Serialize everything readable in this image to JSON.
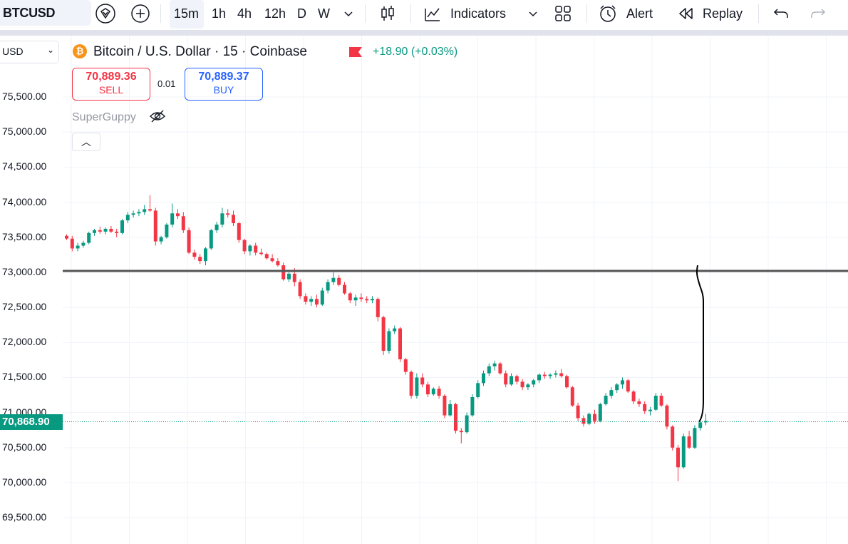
{
  "toolbar": {
    "symbol": "BTCUSD",
    "timeframes": [
      "15m",
      "1h",
      "4h",
      "12h",
      "D",
      "W"
    ],
    "active_timeframe": "15m",
    "indicators_label": "Indicators",
    "alert_label": "Alert",
    "replay_label": "Replay"
  },
  "axis": {
    "currency": "USD",
    "ticks": [
      "75,500.00",
      "75,000.00",
      "74,500.00",
      "74,000.00",
      "73,500.00",
      "73,000.00",
      "72,500.00",
      "72,000.00",
      "71,500.00",
      "71,000.00",
      "70,500.00",
      "70,000.00",
      "69,500.00"
    ],
    "current_price": "70,868.90"
  },
  "legend": {
    "title": "Bitcoin / U.S. Dollar · 15 · Coinbase",
    "change": "+18.90 (+0.03%)",
    "sell_price": "70,889.36",
    "sell_label": "SELL",
    "spread": "0.01",
    "buy_price": "70,889.37",
    "buy_label": "BUY",
    "indicator": "SuperGuppy"
  },
  "colors": {
    "up": "#089981",
    "down": "#f23645",
    "horizontal_line": "#555555",
    "grid": "#f0f3fa"
  },
  "chart_data": {
    "type": "candlestick",
    "title": "",
    "xlabel": "",
    "ylabel": "",
    "ylim": [
      69250,
      75750
    ],
    "horizontal_line": 73020,
    "current_price": 70868.9,
    "drawing": "freehand vertical line from 73100 down to current price",
    "candles": [
      [
        73520,
        73540,
        73460,
        73480
      ],
      [
        73480,
        73520,
        73300,
        73340
      ],
      [
        73340,
        73420,
        73300,
        73380
      ],
      [
        73380,
        73450,
        73350,
        73420
      ],
      [
        73420,
        73580,
        73400,
        73560
      ],
      [
        73560,
        73620,
        73520,
        73600
      ],
      [
        73600,
        73650,
        73550,
        73580
      ],
      [
        73580,
        73640,
        73540,
        73620
      ],
      [
        73620,
        73660,
        73560,
        73580
      ],
      [
        73580,
        73620,
        73500,
        73560
      ],
      [
        73560,
        73760,
        73540,
        73740
      ],
      [
        73740,
        73860,
        73700,
        73820
      ],
      [
        73820,
        73880,
        73780,
        73840
      ],
      [
        73840,
        73900,
        73800,
        73860
      ],
      [
        73860,
        73960,
        73820,
        73900
      ],
      [
        73900,
        74100,
        73860,
        73880
      ],
      [
        73880,
        73920,
        73380,
        73440
      ],
      [
        73440,
        73520,
        73400,
        73500
      ],
      [
        73500,
        73700,
        73480,
        73680
      ],
      [
        73680,
        73980,
        73640,
        73840
      ],
      [
        73840,
        73900,
        73760,
        73800
      ],
      [
        73800,
        73860,
        73560,
        73600
      ],
      [
        73600,
        73640,
        73260,
        73280
      ],
      [
        73280,
        73320,
        73180,
        73220
      ],
      [
        73220,
        73260,
        73120,
        73160
      ],
      [
        73160,
        73360,
        73100,
        73340
      ],
      [
        73340,
        73620,
        73320,
        73600
      ],
      [
        73600,
        73720,
        73560,
        73680
      ],
      [
        73680,
        73920,
        73640,
        73840
      ],
      [
        73840,
        73900,
        73780,
        73820
      ],
      [
        73820,
        73880,
        73660,
        73700
      ],
      [
        73700,
        73720,
        73420,
        73460
      ],
      [
        73460,
        73480,
        73260,
        73300
      ],
      [
        73300,
        73400,
        73240,
        73380
      ],
      [
        73380,
        73420,
        73240,
        73280
      ],
      [
        73280,
        73340,
        73240,
        73260
      ],
      [
        73260,
        73280,
        73180,
        73200
      ],
      [
        73200,
        73260,
        73140,
        73160
      ],
      [
        73160,
        73200,
        73080,
        73100
      ],
      [
        73100,
        73140,
        72880,
        72900
      ],
      [
        72900,
        73000,
        72860,
        72980
      ],
      [
        72980,
        73060,
        72800,
        72860
      ],
      [
        72860,
        72900,
        72620,
        72660
      ],
      [
        72660,
        72700,
        72540,
        72580
      ],
      [
        72580,
        72660,
        72520,
        72620
      ],
      [
        72620,
        72680,
        72500,
        72540
      ],
      [
        72540,
        72780,
        72520,
        72740
      ],
      [
        72740,
        72900,
        72700,
        72860
      ],
      [
        72860,
        73000,
        72820,
        72920
      ],
      [
        72920,
        72960,
        72800,
        72820
      ],
      [
        72820,
        72860,
        72680,
        72700
      ],
      [
        72700,
        72720,
        72560,
        72600
      ],
      [
        72600,
        72680,
        72520,
        72640
      ],
      [
        72640,
        72700,
        72580,
        72620
      ],
      [
        72620,
        72660,
        72560,
        72600
      ],
      [
        72600,
        72660,
        72560,
        72620
      ],
      [
        72620,
        72640,
        72300,
        72360
      ],
      [
        72360,
        72380,
        71820,
        71880
      ],
      [
        71880,
        72200,
        71840,
        72160
      ],
      [
        72160,
        72240,
        72120,
        72200
      ],
      [
        72200,
        72220,
        71720,
        71760
      ],
      [
        71760,
        71780,
        71540,
        71580
      ],
      [
        71580,
        71600,
        71200,
        71240
      ],
      [
        71240,
        71560,
        71200,
        71500
      ],
      [
        71500,
        71560,
        71360,
        71400
      ],
      [
        71400,
        71440,
        71220,
        71260
      ],
      [
        71260,
        71360,
        71240,
        71340
      ],
      [
        71340,
        71380,
        71200,
        71240
      ],
      [
        71240,
        71260,
        70920,
        70960
      ],
      [
        70960,
        71180,
        70940,
        71120
      ],
      [
        71120,
        71140,
        70700,
        70740
      ],
      [
        70740,
        70780,
        70560,
        70720
      ],
      [
        70720,
        71000,
        70700,
        70960
      ],
      [
        70960,
        71260,
        70940,
        71220
      ],
      [
        71220,
        71460,
        71200,
        71420
      ],
      [
        71420,
        71600,
        71380,
        71560
      ],
      [
        71560,
        71700,
        71520,
        71660
      ],
      [
        71660,
        71740,
        71600,
        71700
      ],
      [
        71700,
        71720,
        71540,
        71560
      ],
      [
        71560,
        71600,
        71360,
        71400
      ],
      [
        71400,
        71560,
        71380,
        71520
      ],
      [
        71520,
        71540,
        71400,
        71440
      ],
      [
        71440,
        71480,
        71320,
        71360
      ],
      [
        71360,
        71420,
        71320,
        71400
      ],
      [
        71400,
        71480,
        71360,
        71460
      ],
      [
        71460,
        71560,
        71420,
        71540
      ],
      [
        71540,
        71580,
        71480,
        71520
      ],
      [
        71520,
        71560,
        71480,
        71540
      ],
      [
        71540,
        71600,
        71500,
        71560
      ],
      [
        71560,
        71620,
        71500,
        71520
      ],
      [
        71520,
        71540,
        71340,
        71360
      ],
      [
        71360,
        71380,
        71080,
        71100
      ],
      [
        71100,
        71140,
        70880,
        70920
      ],
      [
        70920,
        70960,
        70800,
        70840
      ],
      [
        70840,
        71000,
        70820,
        70980
      ],
      [
        70980,
        71040,
        70840,
        70880
      ],
      [
        70880,
        71140,
        70860,
        71120
      ],
      [
        71120,
        71280,
        71100,
        71240
      ],
      [
        71240,
        71360,
        71200,
        71320
      ],
      [
        71320,
        71420,
        71280,
        71400
      ],
      [
        71400,
        71500,
        71340,
        71460
      ],
      [
        71460,
        71480,
        71280,
        71300
      ],
      [
        71300,
        71320,
        71120,
        71160
      ],
      [
        71160,
        71200,
        71080,
        71120
      ],
      [
        71120,
        71160,
        70980,
        71020
      ],
      [
        71020,
        71080,
        70960,
        71040
      ],
      [
        71040,
        71280,
        71020,
        71240
      ],
      [
        71240,
        71280,
        71080,
        71100
      ],
      [
        71100,
        71120,
        70760,
        70800
      ],
      [
        70800,
        70820,
        70460,
        70500
      ],
      [
        70500,
        70540,
        70020,
        70220
      ],
      [
        70220,
        70700,
        70200,
        70660
      ],
      [
        70660,
        70740,
        70480,
        70500
      ],
      [
        70500,
        70820,
        70480,
        70780
      ],
      [
        70780,
        70900,
        70740,
        70860
      ],
      [
        70860,
        70980,
        70820,
        70880
      ]
    ]
  }
}
